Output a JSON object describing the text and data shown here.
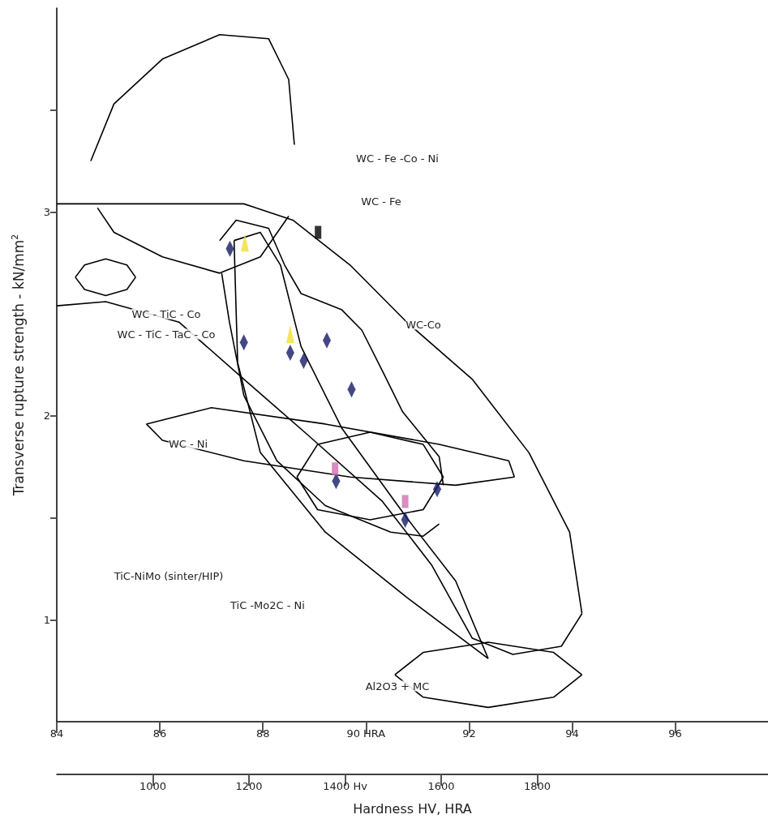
{
  "chart_data": {
    "type": "scatter",
    "xlabel": "Hardness HV, HRA",
    "ylabel": "Transverse rupture strength - kN/mm$^{2}$",
    "xlim": [
      84,
      97.8
    ],
    "xticks": [
      84,
      86,
      88,
      {
        "value": 90,
        "label": "90 HRA"
      },
      92,
      94,
      96
    ],
    "x2lim": [
      800,
      2280
    ],
    "x2ticks": [
      1000,
      1200,
      {
        "value": 1400,
        "label": "1400 Hv"
      },
      1600,
      1800
    ],
    "ylim": [
      0.5,
      4.0
    ],
    "yticks": [
      1,
      {
        "value": 1.5,
        "label": null
      },
      2,
      3,
      {
        "value": 3.5,
        "label": null
      }
    ],
    "grid": false,
    "series": [
      {
        "type": "line",
        "marker": "none",
        "color": "#000000",
        "x": [
          84.66,
          85.11,
          86.05,
          87.16,
          88.11,
          88.5,
          88.61
        ],
        "values": [
          3.25,
          3.53,
          3.75,
          3.87,
          3.85,
          3.65,
          3.33
        ]
      },
      {
        "type": "line",
        "marker": "none",
        "color": "#000000",
        "x": [
          84.79,
          85.11,
          86.05,
          87.16,
          87.95,
          88.5
        ],
        "values": [
          3.02,
          2.9,
          2.78,
          2.7,
          2.78,
          2.98
        ]
      },
      {
        "type": "line",
        "marker": "none",
        "color": "#000000",
        "x": [
          84,
          87.63,
          88.58,
          89.69,
          90.79,
          92.06,
          93.16,
          93.95,
          94.19
        ],
        "values": [
          3.04,
          3.04,
          2.96,
          2.74,
          2.46,
          2.18,
          1.82,
          1.43,
          1.03
        ]
      },
      {
        "type": "line",
        "marker": "none",
        "color": "#000000",
        "x": [
          84,
          84.95,
          86.37,
          87.63,
          88.9,
          90.32,
          91.27,
          92.06,
          92.85,
          93.79,
          94.19
        ],
        "values": [
          2.54,
          2.56,
          2.46,
          2.18,
          1.9,
          1.58,
          1.27,
          0.91,
          0.83,
          0.87,
          1.03
        ]
      },
      {
        "type": "line",
        "marker": "none",
        "color": "#000000",
        "x": [
          84.36,
          84.54,
          84.95,
          85.36,
          85.53
        ],
        "values": [
          2.68,
          2.74,
          2.77,
          2.74,
          2.68
        ]
      },
      {
        "type": "line",
        "marker": "none",
        "color": "#000000",
        "x": [
          84.36,
          84.54,
          84.95,
          85.36,
          85.53
        ],
        "values": [
          2.68,
          2.62,
          2.59,
          2.62,
          2.68
        ]
      },
      {
        "type": "line",
        "marker": "none",
        "color": "#000000",
        "x": [
          85.74,
          87,
          89.21,
          91.42,
          92.77,
          92.88
        ],
        "values": [
          1.96,
          2.04,
          1.96,
          1.86,
          1.78,
          1.7
        ]
      },
      {
        "type": "line",
        "marker": "none",
        "color": "#000000",
        "x": [
          85.74,
          86.05,
          87.63,
          89.69,
          91.74,
          92.88
        ],
        "values": [
          1.96,
          1.88,
          1.78,
          1.7,
          1.66,
          1.7
        ]
      },
      {
        "type": "line",
        "marker": "none",
        "color": "#000000",
        "x": [
          90.56,
          91.11,
          92.37,
          93.64,
          94.19
        ],
        "values": [
          0.73,
          0.84,
          0.89,
          0.84,
          0.73
        ]
      },
      {
        "type": "line",
        "marker": "none",
        "color": "#000000",
        "x": [
          90.56,
          91.11,
          92.37,
          93.64,
          94.19
        ],
        "values": [
          0.73,
          0.62,
          0.57,
          0.62,
          0.73
        ]
      },
      {
        "type": "line",
        "marker": "none",
        "color": "#000000",
        "x": [
          87.44,
          87.51,
          87.95,
          89.21,
          90.79,
          92.37
        ],
        "values": [
          2.86,
          2.26,
          1.82,
          1.43,
          1.11,
          0.81
        ]
      },
      {
        "type": "line",
        "marker": "none",
        "color": "#000000",
        "x": [
          87.44,
          87.95,
          88.34,
          88.74,
          89.53,
          90.79,
          91.74,
          92.37
        ],
        "values": [
          2.86,
          2.9,
          2.74,
          2.34,
          1.94,
          1.5,
          1.19,
          0.81
        ]
      },
      {
        "type": "line",
        "marker": "none",
        "color": "#000000",
        "x": [
          87.16,
          87.48,
          88.11,
          88.42,
          88.74,
          89.53,
          89.92,
          90.32,
          90.71,
          91.42,
          91.5
        ],
        "values": [
          2.86,
          2.96,
          2.92,
          2.74,
          2.6,
          2.52,
          2.42,
          2.22,
          2.02,
          1.8,
          1.66
        ]
      },
      {
        "type": "line",
        "marker": "none",
        "color": "#000000",
        "x": [
          87.2,
          87.35,
          87.63,
          88.27,
          89.21,
          90.48,
          91.11,
          91.42
        ],
        "values": [
          2.7,
          2.46,
          2.1,
          1.78,
          1.56,
          1.43,
          1.41,
          1.47
        ]
      },
      {
        "type": "line",
        "marker": "none",
        "color": "#000000",
        "x": [
          88.66,
          89.06,
          90.08,
          91.11,
          91.5
        ],
        "values": [
          1.7,
          1.86,
          1.92,
          1.86,
          1.7
        ]
      },
      {
        "type": "line",
        "marker": "none",
        "color": "#000000",
        "x": [
          88.66,
          89.06,
          90.08,
          91.11,
          91.5
        ],
        "values": [
          1.7,
          1.54,
          1.49,
          1.54,
          1.7
        ]
      },
      {
        "marker": "diamond",
        "color": "#141a66",
        "x": [
          87.36,
          87.63,
          88.53,
          88.79,
          89.24,
          89.72,
          89.42,
          90.76,
          91.38
        ],
        "values": [
          2.82,
          2.36,
          2.31,
          2.27,
          2.37,
          2.13,
          1.68,
          1.49,
          1.64
        ]
      },
      {
        "marker": "triangle",
        "color": "#f0e030",
        "x": [
          87.65,
          88.53
        ],
        "values": [
          2.85,
          2.4
        ]
      },
      {
        "marker": "square",
        "color": "#d070b0",
        "x": [
          89.4,
          90.76
        ],
        "values": [
          1.74,
          1.58
        ]
      },
      {
        "marker": "square",
        "color": "#000000",
        "x": [
          89.07
        ],
        "values": [
          2.9
        ]
      }
    ],
    "annotations": [
      "WC - Fe -Co - Ni",
      "WC - Fe",
      "WC - TiC - Co",
      "WC - TiC - TaC - Co",
      "WC-Co",
      "WC - Ni",
      "TiC-NiMo (sinter/HIP)",
      "TiC -Mo2C - Ni",
      "Al2O3 + MC"
    ]
  }
}
